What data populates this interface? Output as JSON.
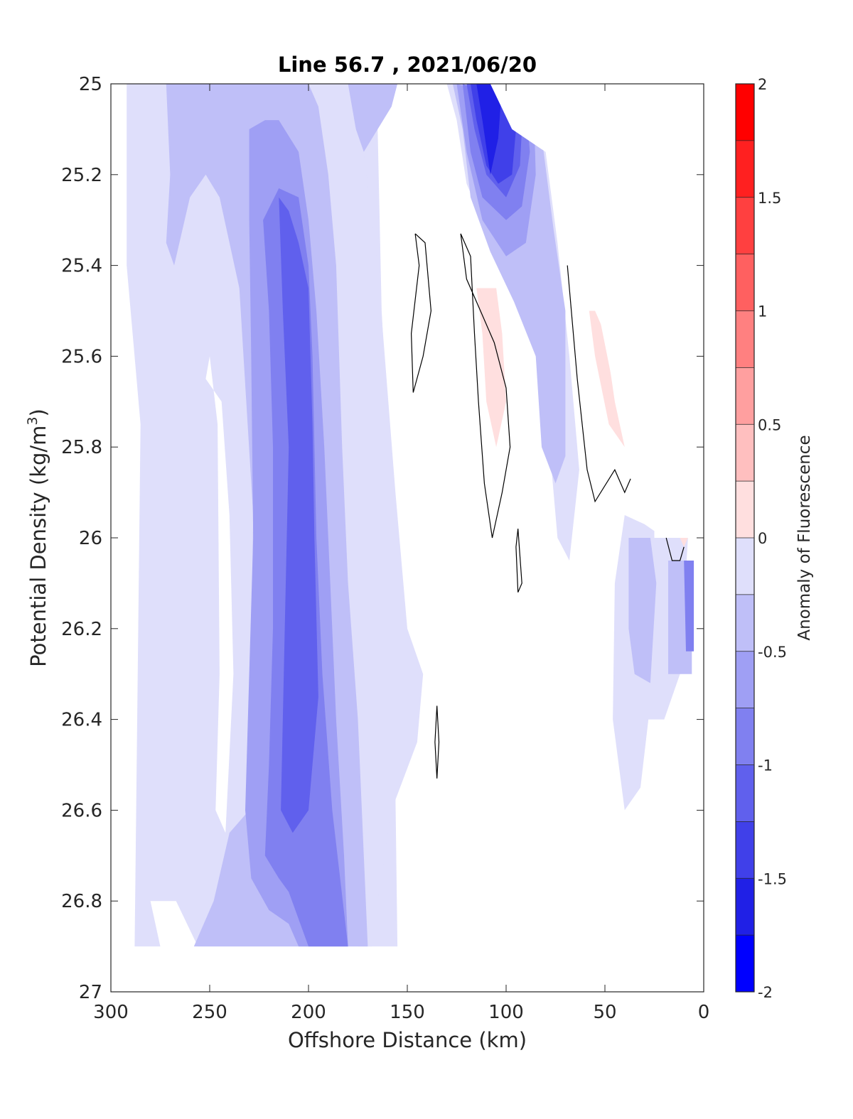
{
  "chart_data": {
    "type": "heatmap",
    "subtype": "filled-contour",
    "title": "Line 56.7 , 2021/06/20",
    "xlabel": "Offshore Distance (km)",
    "ylabel_main": "Potential Density (kg/m",
    "ylabel_sup": "3",
    "ylabel_end": ")",
    "xlim": [
      300,
      0
    ],
    "x_reversed": true,
    "ylim": [
      25,
      27
    ],
    "y_reversed": true,
    "x_ticks": [
      "300",
      "250",
      "200",
      "150",
      "100",
      "50",
      "0"
    ],
    "y_ticks": [
      "25",
      "25.2",
      "25.4",
      "25.6",
      "25.8",
      "26",
      "26.2",
      "26.4",
      "26.6",
      "26.8",
      "27"
    ],
    "colorbar": {
      "label": "Anomaly of Fluorescence",
      "range": [
        -2,
        2
      ],
      "tick_labels": [
        "2",
        "1.5",
        "1",
        "0.5",
        "0",
        "-0.5",
        "-1",
        "-1.5",
        "-2"
      ],
      "level_step": 0.25,
      "colors_top_to_bottom": [
        "#ff0000",
        "#ff2020",
        "#ff4040",
        "#ff6060",
        "#ff8080",
        "#ff9f9f",
        "#ffbfbf",
        "#ffdfdf",
        "#ffffff",
        "#ffffff",
        "#dfdffb",
        "#bfbff8",
        "#9f9ff4",
        "#8080f0",
        "#6060ed",
        "#4040e9",
        "#2020e6",
        "#0000ff"
      ]
    },
    "regions": [
      {
        "level": -0.5,
        "color": "#dfdffb",
        "polygon": [
          [
            292,
            25
          ],
          [
            292,
            25.4
          ],
          [
            285,
            25.75
          ],
          [
            288,
            26.9
          ],
          [
            275,
            26.9
          ],
          [
            280,
            26.8
          ],
          [
            267,
            26.8
          ],
          [
            256,
            26.9
          ],
          [
            155,
            26.9
          ],
          [
            158,
            25.9
          ],
          [
            163,
            25.5
          ],
          [
            165,
            25.1
          ],
          [
            160,
            25.0
          ]
        ]
      },
      {
        "level": -0.5,
        "color": "#dfdffb",
        "polygon": [
          [
            175,
            25
          ],
          [
            172,
            25.15
          ],
          [
            165,
            25.4
          ],
          [
            156,
            25.9
          ],
          [
            150,
            26.2
          ],
          [
            142,
            26.3
          ],
          [
            145,
            26.45
          ],
          [
            158,
            26.6
          ],
          [
            165,
            26.8
          ],
          [
            168,
            26.9
          ],
          [
            175,
            26.9
          ]
        ]
      },
      {
        "level": 0.0,
        "color": "#ffffff",
        "polygon": [
          [
            252,
            25.65
          ],
          [
            250,
            25.6
          ],
          [
            246,
            25.75
          ],
          [
            245,
            26.3
          ],
          [
            247,
            26.6
          ],
          [
            242,
            26.65
          ],
          [
            238,
            26.3
          ],
          [
            240,
            25.95
          ],
          [
            244,
            25.7
          ]
        ]
      },
      {
        "level": -0.75,
        "color": "#bfbff8",
        "polygon": [
          [
            272,
            25
          ],
          [
            270,
            25.2
          ],
          [
            272,
            25.35
          ],
          [
            268,
            25.4
          ],
          [
            260,
            25.25
          ],
          [
            252,
            25.2
          ],
          [
            245,
            25.25
          ],
          [
            235,
            25.45
          ],
          [
            228,
            25.95
          ],
          [
            230,
            26.6
          ],
          [
            240,
            26.65
          ],
          [
            248,
            26.8
          ],
          [
            258,
            26.9
          ],
          [
            170,
            26.9
          ],
          [
            172,
            26.7
          ],
          [
            175,
            26.4
          ],
          [
            180,
            26.1
          ],
          [
            183,
            25.8
          ],
          [
            186,
            25.4
          ],
          [
            190,
            25.2
          ],
          [
            195,
            25.05
          ],
          [
            200,
            25.0
          ]
        ]
      },
      {
        "level": -0.75,
        "color": "#bfbff8",
        "polygon": [
          [
            180,
            25
          ],
          [
            176,
            25.1
          ],
          [
            172,
            25.15
          ],
          [
            165,
            25.1
          ],
          [
            158,
            25.05
          ],
          [
            155,
            25.0
          ]
        ]
      },
      {
        "level": -1.0,
        "color": "#9f9ff4",
        "polygon": [
          [
            230,
            25.1
          ],
          [
            230,
            25.3
          ],
          [
            229,
            25.6
          ],
          [
            228,
            26.0
          ],
          [
            230,
            26.3
          ],
          [
            232,
            26.6
          ],
          [
            229,
            26.75
          ],
          [
            220,
            26.82
          ],
          [
            210,
            26.85
          ],
          [
            205,
            26.9
          ],
          [
            180,
            26.9
          ],
          [
            182,
            26.7
          ],
          [
            186,
            26.4
          ],
          [
            189,
            26.1
          ],
          [
            192,
            25.8
          ],
          [
            196,
            25.5
          ],
          [
            200,
            25.3
          ],
          [
            205,
            25.15
          ],
          [
            215,
            25.08
          ],
          [
            222,
            25.08
          ]
        ]
      },
      {
        "level": -1.25,
        "color": "#8080f0",
        "polygon": [
          [
            223,
            25.3
          ],
          [
            220,
            25.5
          ],
          [
            218,
            25.8
          ],
          [
            218,
            26.2
          ],
          [
            220,
            26.5
          ],
          [
            222,
            26.7
          ],
          [
            215,
            26.75
          ],
          [
            210,
            26.78
          ],
          [
            200,
            26.9
          ],
          [
            180,
            26.9
          ],
          [
            188,
            26.6
          ],
          [
            193,
            26.3
          ],
          [
            196,
            26.0
          ],
          [
            198,
            25.6
          ],
          [
            200,
            25.4
          ],
          [
            205,
            25.25
          ],
          [
            215,
            25.23
          ]
        ]
      },
      {
        "level": -1.5,
        "color": "#6060ed",
        "polygon": [
          [
            215,
            25.25
          ],
          [
            213,
            25.5
          ],
          [
            210,
            25.8
          ],
          [
            212,
            26.2
          ],
          [
            214,
            26.6
          ],
          [
            208,
            26.65
          ],
          [
            200,
            26.6
          ],
          [
            195,
            26.35
          ],
          [
            197,
            26.0
          ],
          [
            198,
            25.75
          ],
          [
            200,
            25.45
          ],
          [
            205,
            25.35
          ],
          [
            210,
            25.28
          ]
        ]
      },
      {
        "level": -0.5,
        "color": "#dfdffb",
        "polygon": [
          [
            130,
            25
          ],
          [
            125,
            25.08
          ],
          [
            120,
            25.22
          ],
          [
            112,
            25.3
          ],
          [
            100,
            25.4
          ],
          [
            90,
            25.5
          ],
          [
            82,
            25.6
          ],
          [
            78,
            25.8
          ],
          [
            74,
            26.0
          ],
          [
            68,
            26.05
          ],
          [
            63,
            25.85
          ],
          [
            68,
            25.6
          ],
          [
            74,
            25.35
          ],
          [
            80,
            25.15
          ],
          [
            85,
            25.0
          ]
        ]
      },
      {
        "level": -0.75,
        "color": "#bfbff8",
        "polygon": [
          [
            127,
            25
          ],
          [
            122,
            25.1
          ],
          [
            118,
            25.25
          ],
          [
            108,
            25.37
          ],
          [
            96,
            25.48
          ],
          [
            85,
            25.6
          ],
          [
            82,
            25.8
          ],
          [
            75,
            25.88
          ],
          [
            70,
            25.82
          ],
          [
            70,
            25.5
          ],
          [
            76,
            25.32
          ],
          [
            81,
            25.15
          ],
          [
            86,
            25.0
          ]
        ]
      },
      {
        "level": -1.0,
        "color": "#9f9ff4",
        "polygon": [
          [
            125,
            25
          ],
          [
            120,
            25.15
          ],
          [
            112,
            25.3
          ],
          [
            100,
            25.38
          ],
          [
            90,
            25.35
          ],
          [
            85,
            25.2
          ],
          [
            86,
            25.05
          ]
        ]
      },
      {
        "level": -1.25,
        "color": "#8080f0",
        "polygon": [
          [
            122,
            25
          ],
          [
            118,
            25.15
          ],
          [
            112,
            25.25
          ],
          [
            100,
            25.3
          ],
          [
            92,
            25.27
          ],
          [
            88,
            25.15
          ],
          [
            90,
            25.05
          ]
        ]
      },
      {
        "level": -1.5,
        "color": "#6060ed",
        "polygon": [
          [
            120,
            25
          ],
          [
            116,
            25.1
          ],
          [
            110,
            25.2
          ],
          [
            100,
            25.25
          ],
          [
            93,
            25.18
          ],
          [
            92,
            25.1
          ],
          [
            95,
            25.0
          ]
        ]
      },
      {
        "level": -1.75,
        "color": "#4040e9",
        "polygon": [
          [
            118,
            25
          ],
          [
            115,
            25.08
          ],
          [
            110,
            25.18
          ],
          [
            104,
            25.22
          ],
          [
            97,
            25.2
          ],
          [
            95,
            25.1
          ],
          [
            98,
            25.0
          ]
        ]
      },
      {
        "level": -2.0,
        "color": "#2020e6",
        "polygon": [
          [
            115,
            25
          ],
          [
            112,
            25.08
          ],
          [
            108,
            25.2
          ],
          [
            104,
            25.12
          ],
          [
            102,
            25.0
          ]
        ]
      },
      {
        "level": -0.5,
        "color": "#dfdffb",
        "polygon": [
          [
            40,
            25.95
          ],
          [
            45,
            26.1
          ],
          [
            46,
            26.4
          ],
          [
            40,
            26.6
          ],
          [
            32,
            26.55
          ],
          [
            28,
            26.4
          ],
          [
            20,
            26.4
          ],
          [
            12,
            26.3
          ],
          [
            8,
            26.0
          ],
          [
            20,
            26.0
          ],
          [
            30,
            25.97
          ]
        ]
      },
      {
        "level": -0.75,
        "color": "#bfbff8",
        "polygon": [
          [
            38,
            26.0
          ],
          [
            38,
            26.2
          ],
          [
            35,
            26.3
          ],
          [
            27,
            26.32
          ],
          [
            24,
            26.1
          ],
          [
            27,
            26.0
          ]
        ]
      },
      {
        "level": -0.75,
        "color": "#bfbff8",
        "polygon": [
          [
            18,
            26.05
          ],
          [
            18,
            26.3
          ],
          [
            6,
            26.3
          ],
          [
            6,
            26.05
          ]
        ]
      },
      {
        "level": -1.25,
        "color": "#8080f0",
        "polygon": [
          [
            10,
            26.05
          ],
          [
            9,
            26.25
          ],
          [
            5,
            26.25
          ],
          [
            5,
            26.05
          ]
        ]
      },
      {
        "level": 0.25,
        "color": "#ffdfdf",
        "polygon": [
          [
            115,
            25.45
          ],
          [
            112,
            25.55
          ],
          [
            110,
            25.7
          ],
          [
            105,
            25.8
          ],
          [
            100,
            25.7
          ],
          [
            102,
            25.55
          ],
          [
            105,
            25.45
          ]
        ]
      },
      {
        "level": 0.25,
        "color": "#ffdfdf",
        "polygon": [
          [
            58,
            25.5
          ],
          [
            55,
            25.6
          ],
          [
            48,
            25.75
          ],
          [
            40,
            25.8
          ],
          [
            45,
            25.7
          ],
          [
            50,
            25.55
          ],
          [
            55,
            25.5
          ]
        ]
      },
      {
        "level": 0.25,
        "color": "#ffdfdf",
        "polygon": [
          [
            12,
            26.0
          ],
          [
            10,
            26.02
          ],
          [
            8,
            26.0
          ]
        ]
      },
      {
        "level": 0.0,
        "color": "#ffffff",
        "polygon": [
          [
            97,
            25.1
          ],
          [
            80,
            25.15
          ],
          [
            58,
            25.4
          ],
          [
            35,
            25.9
          ],
          [
            25,
            25.95
          ],
          [
            25,
            26.0
          ],
          [
            5,
            26.0
          ],
          [
            5,
            25.0
          ],
          [
            108,
            25.0
          ]
        ]
      }
    ],
    "contour_lines": [
      {
        "level": 0.0,
        "points": [
          [
            146,
            25.33
          ],
          [
            141,
            25.35
          ],
          [
            138,
            25.5
          ],
          [
            142,
            25.6
          ],
          [
            147,
            25.68
          ],
          [
            148,
            25.55
          ],
          [
            144,
            25.4
          ],
          [
            146,
            25.33
          ]
        ]
      },
      {
        "level": 0.0,
        "points": [
          [
            123,
            25.33
          ],
          [
            120,
            25.43
          ],
          [
            113,
            25.5
          ],
          [
            106,
            25.57
          ],
          [
            100,
            25.67
          ],
          [
            98,
            25.8
          ],
          [
            102,
            25.9
          ],
          [
            107,
            26.0
          ],
          [
            111,
            25.88
          ],
          [
            114,
            25.7
          ],
          [
            116,
            25.55
          ],
          [
            118,
            25.38
          ],
          [
            123,
            25.33
          ]
        ]
      },
      {
        "level": 0.0,
        "points": [
          [
            69,
            25.4
          ],
          [
            64,
            25.65
          ],
          [
            59,
            25.85
          ],
          [
            55,
            25.92
          ],
          [
            45,
            25.85
          ],
          [
            40,
            25.9
          ],
          [
            37,
            25.87
          ]
        ]
      },
      {
        "level": 0.0,
        "points": [
          [
            19,
            26.0
          ],
          [
            16,
            26.05
          ],
          [
            12,
            26.05
          ],
          [
            10,
            26.02
          ]
        ]
      },
      {
        "level": 0.0,
        "points": [
          [
            94,
            25.98
          ],
          [
            92,
            26.1
          ],
          [
            94,
            26.12
          ],
          [
            95,
            26.02
          ],
          [
            94,
            25.98
          ]
        ]
      },
      {
        "level": 0.0,
        "points": [
          [
            135,
            26.37
          ],
          [
            134,
            26.45
          ],
          [
            135,
            26.53
          ],
          [
            136,
            26.45
          ],
          [
            135,
            26.37
          ]
        ]
      }
    ]
  }
}
